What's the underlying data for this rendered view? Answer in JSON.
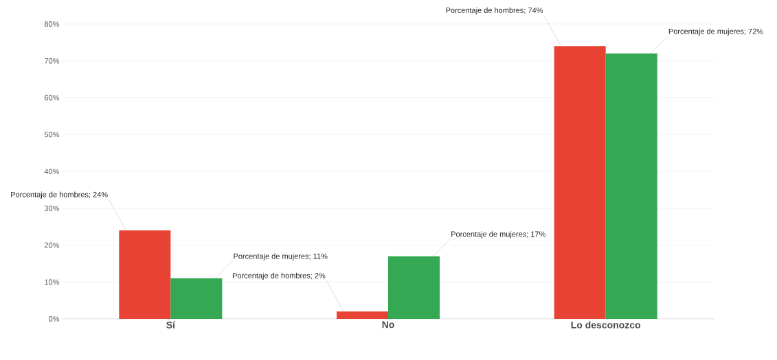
{
  "chart_data": {
    "type": "bar",
    "categories": [
      "Sí",
      "No",
      "Lo desconozco"
    ],
    "series": [
      {
        "color": "#e84235",
        "values": [
          24,
          2,
          74
        ],
        "value_labels": [
          "Porcentaje de hombres; 24%",
          "Porcentaje de hombres; 2%",
          "Porcentaje de hombres; 74%"
        ]
      },
      {
        "color": "#34a853",
        "values": [
          11,
          17,
          72
        ],
        "value_labels": [
          "Porcentaje de mujeres; 11%",
          "Porcentaje de mujeres; 17%",
          "Porcentaje de mujeres; 72%"
        ]
      }
    ],
    "ylim": [
      0,
      80
    ],
    "yticks": [
      {
        "value": 0,
        "label": "0%"
      },
      {
        "value": 10,
        "label": "10%"
      },
      {
        "value": 20,
        "label": "20%"
      },
      {
        "value": 30,
        "label": "30%"
      },
      {
        "value": 40,
        "label": "40%"
      },
      {
        "value": 50,
        "label": "50%"
      },
      {
        "value": 60,
        "label": "60%"
      },
      {
        "value": 70,
        "label": "70%"
      },
      {
        "value": 80,
        "label": "80%"
      }
    ],
    "grid": "y",
    "legend": false
  }
}
